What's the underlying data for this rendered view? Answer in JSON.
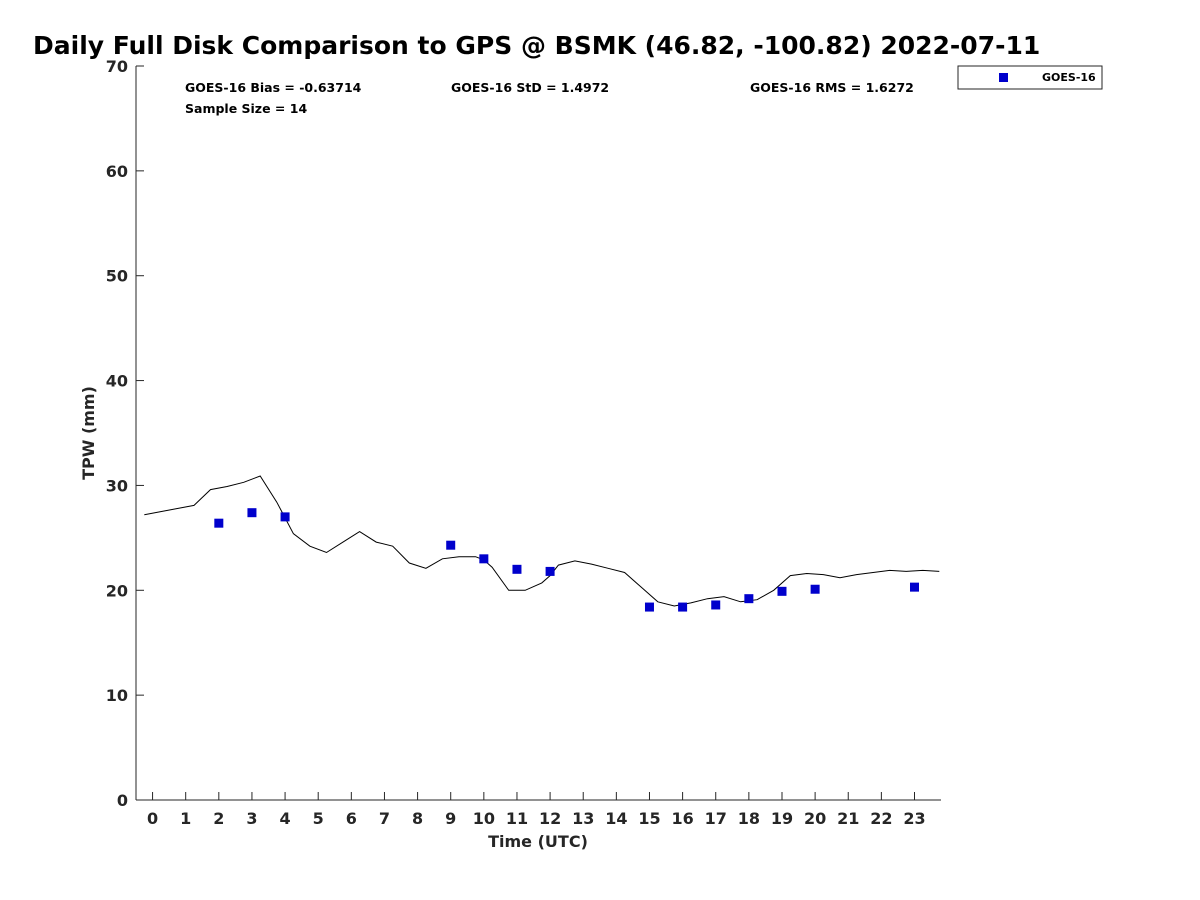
{
  "chart_data": {
    "type": "scatter",
    "title": "Daily Full Disk Comparison to GPS @ BSMK (46.82, -100.82) 2022-07-11",
    "xlabel": "Time (UTC)",
    "ylabel": "TPW (mm)",
    "xlim": [
      -0.5,
      23.8
    ],
    "ylim": [
      0,
      70
    ],
    "xticks": [
      0,
      1,
      2,
      3,
      4,
      5,
      6,
      7,
      8,
      9,
      10,
      11,
      12,
      13,
      14,
      15,
      16,
      17,
      18,
      19,
      20,
      21,
      22,
      23
    ],
    "yticks": [
      0,
      10,
      20,
      30,
      40,
      50,
      60,
      70
    ],
    "grid": false,
    "legend_position": "top-right",
    "colors": {
      "goes16": "#0000cc",
      "gps_line": "#000000"
    },
    "stats": {
      "bias": "GOES-16 Bias = -0.63714",
      "std": "GOES-16 StD = 1.4972",
      "rms": "GOES-16 RMS = 1.6272",
      "sample_size": "Sample Size = 14"
    },
    "series": [
      {
        "name": "GOES-16",
        "marker": "square",
        "x": [
          2,
          3,
          4,
          9,
          10,
          11,
          12,
          15,
          16,
          17,
          18,
          19,
          20,
          23
        ],
        "y": [
          26.4,
          27.4,
          27.0,
          24.3,
          23.0,
          22.0,
          21.8,
          18.4,
          18.4,
          18.6,
          19.2,
          19.9,
          20.1,
          20.3
        ]
      },
      {
        "marker": "line",
        "x": [
          -0.25,
          0.25,
          0.75,
          1.25,
          1.75,
          2.25,
          2.75,
          3.25,
          3.75,
          4.0,
          4.25,
          4.75,
          5.25,
          5.75,
          6.25,
          6.75,
          7.25,
          7.75,
          8.25,
          8.75,
          9.25,
          9.75,
          10.0,
          10.25,
          10.75,
          11.25,
          11.75,
          12.0,
          12.25,
          12.75,
          13.25,
          13.75,
          14.25,
          14.75,
          15.25,
          15.75,
          16.25,
          16.75,
          17.25,
          17.75,
          18.25,
          18.75,
          19.25,
          19.75,
          20.25,
          20.75,
          21.25,
          21.75,
          22.25,
          22.75,
          23.25,
          23.75
        ],
        "y": [
          27.2,
          27.5,
          27.8,
          28.1,
          29.6,
          29.9,
          30.3,
          30.9,
          28.4,
          26.9,
          25.4,
          24.2,
          23.6,
          24.6,
          25.6,
          24.6,
          24.2,
          22.6,
          22.1,
          23.0,
          23.2,
          23.2,
          22.9,
          22.2,
          20.0,
          20.0,
          20.7,
          21.4,
          22.4,
          22.8,
          22.5,
          22.1,
          21.7,
          20.3,
          18.9,
          18.5,
          18.8,
          19.2,
          19.4,
          18.9,
          19.1,
          20.0,
          21.4,
          21.6,
          21.5,
          21.2,
          21.5,
          21.7,
          21.9,
          21.8,
          21.9,
          21.8
        ]
      }
    ]
  }
}
